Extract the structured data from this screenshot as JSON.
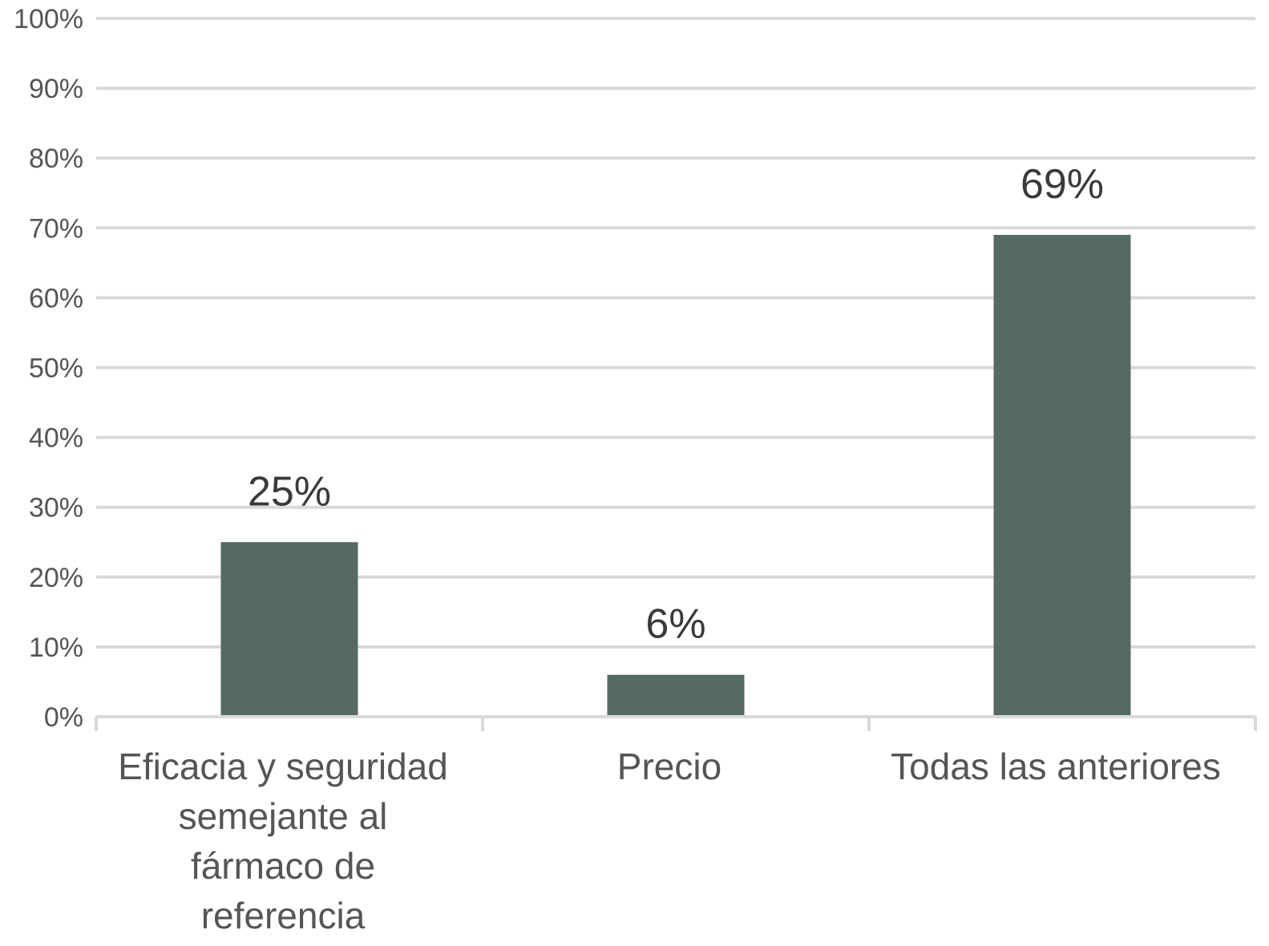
{
  "chart_data": {
    "type": "bar",
    "title": "",
    "xlabel": "",
    "ylabel": "",
    "categories": [
      [
        "Eficacia y seguridad",
        "semejante al",
        "fármaco de",
        "referencia"
      ],
      [
        "Precio"
      ],
      [
        "Todas las anteriores"
      ]
    ],
    "values": [
      25,
      6,
      69
    ],
    "data_labels": [
      "25%",
      "6%",
      "69%"
    ],
    "ylim": [
      0,
      100
    ],
    "yticks": [
      0,
      10,
      20,
      30,
      40,
      50,
      60,
      70,
      80,
      90,
      100
    ],
    "ytick_labels": [
      "0%",
      "10%",
      "20%",
      "30%",
      "40%",
      "50%",
      "60%",
      "70%",
      "80%",
      "90%",
      "100%"
    ],
    "grid": true,
    "legend": "none",
    "bar_color": "#556b62",
    "grid_color": "#d9d9d9"
  }
}
